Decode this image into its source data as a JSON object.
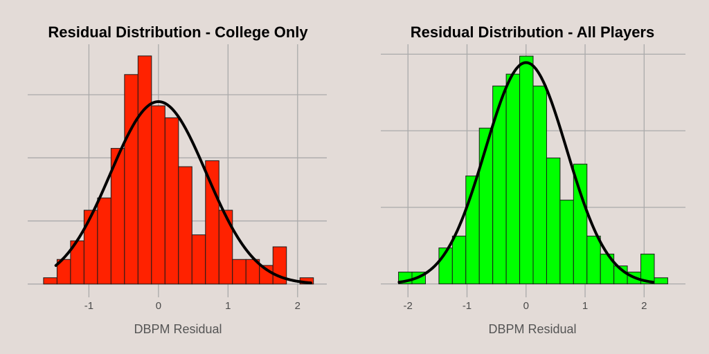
{
  "chart_data": [
    {
      "type": "bar",
      "title": "Residual Distribution - College Only",
      "xlabel": "DBPM Residual",
      "ylabel": "",
      "color": "#ff2200",
      "xlim": [
        -1.88,
        2.42
      ],
      "ylim": [
        -0.042,
        0.76
      ],
      "xticks": [
        -1,
        0,
        1,
        2
      ],
      "ygrid": [
        0,
        0.2,
        0.4,
        0.6
      ],
      "grid": true,
      "bin_start": -1.652,
      "bin_width": 0.194,
      "values": [
        0.02,
        0.078,
        0.137,
        0.234,
        0.273,
        0.43,
        0.664,
        0.723,
        0.565,
        0.527,
        0.372,
        0.156,
        0.391,
        0.234,
        0.078,
        0.078,
        0.059,
        0.118,
        0,
        0.02
      ],
      "normal_curve": {
        "mean": 0,
        "sd": 0.69,
        "x_range": [
          -1.475,
          2.19
        ]
      }
    },
    {
      "type": "bar",
      "title": "Residual Distribution - All Players",
      "xlabel": "DBPM Residual",
      "ylabel": "",
      "color": "#00ff00",
      "xlim": [
        -2.46,
        2.7
      ],
      "ylim": [
        -0.035,
        0.626
      ],
      "xticks": [
        -2,
        -1,
        0,
        1,
        2
      ],
      "ygrid": [
        0,
        0.2,
        0.4,
        0.6
      ],
      "grid": true,
      "bin_start": -2.16,
      "bin_width": 0.228,
      "values": [
        0.031,
        0.031,
        0,
        0.094,
        0.125,
        0.282,
        0.407,
        0.517,
        0.548,
        0.595,
        0.517,
        0.329,
        0.219,
        0.313,
        0.125,
        0.078,
        0.047,
        0.031,
        0.078,
        0.016
      ],
      "normal_curve": {
        "mean": 0,
        "sd": 0.69,
        "x_range": [
          -2.15,
          2.15
        ]
      }
    }
  ]
}
